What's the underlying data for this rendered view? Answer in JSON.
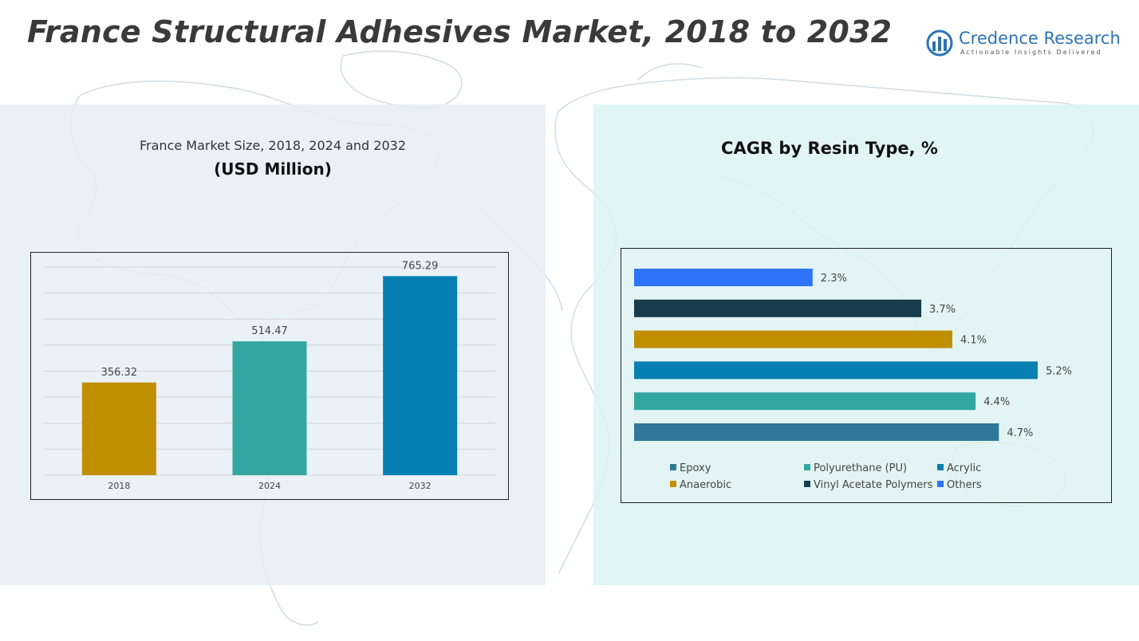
{
  "title": "France Structural Adhesives Market, 2018 to 2032",
  "logo": {
    "name": "Credence Research",
    "tagline": "Actionable Insights Delivered"
  },
  "chart_data": [
    {
      "type": "bar",
      "title": "France Market Size, 2018, 2024 and 2032",
      "subtitle": "(USD Million)",
      "categories": [
        "2018",
        "2024",
        "2032"
      ],
      "values": [
        356.32,
        514.47,
        765.29
      ],
      "value_labels": [
        "356.32",
        "514.47",
        "765.29"
      ],
      "colors": [
        "#c08f00",
        "#32a6a3",
        "#0680b2"
      ],
      "ylim": [
        0,
        800
      ],
      "grid": true,
      "xlabel": "",
      "ylabel": ""
    },
    {
      "type": "bar",
      "orientation": "horizontal",
      "title": "CAGR by Resin Type, %",
      "categories": [
        "Others",
        "Vinyl Acetate Polymers",
        "Anaerobic",
        "Acrylic",
        "Polyurethane (PU)",
        "Epoxy"
      ],
      "values": [
        2.3,
        3.7,
        4.1,
        5.2,
        4.4,
        4.7
      ],
      "value_labels": [
        "2.3%",
        "3.7%",
        "4.1%",
        "5.2%",
        "4.4%",
        "4.7%"
      ],
      "colors": [
        "#2d74fa",
        "#183c4b",
        "#c08f00",
        "#0680b2",
        "#32a6a3",
        "#2f7898"
      ],
      "xlim": [
        0,
        5.2
      ],
      "grid": false,
      "legend": {
        "position": "bottom",
        "entries": [
          {
            "label": "Epoxy",
            "color": "#2f7898"
          },
          {
            "label": "Polyurethane (PU)",
            "color": "#32a6a3"
          },
          {
            "label": "Acrylic",
            "color": "#0680b2"
          },
          {
            "label": "Anaerobic",
            "color": "#c08f00"
          },
          {
            "label": "Vinyl Acetate Polymers",
            "color": "#183c4b"
          },
          {
            "label": "Others",
            "color": "#2d74fa"
          }
        ]
      }
    }
  ]
}
